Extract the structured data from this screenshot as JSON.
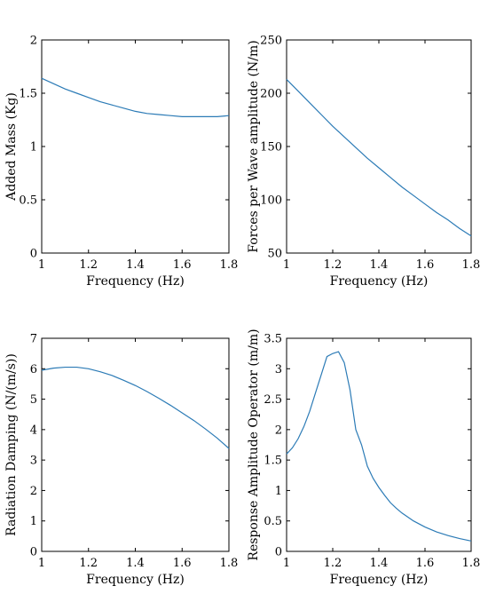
{
  "chart_data": [
    {
      "type": "line",
      "xlabel": "Frequency (Hz)",
      "ylabel": "Added Mass (Kg)",
      "xlim": [
        1,
        1.8
      ],
      "ylim": [
        0,
        2
      ],
      "xticks": [
        "1",
        "1.2",
        "1.4",
        "1.6",
        "1.8"
      ],
      "yticks": [
        "0",
        "0.5",
        "1",
        "1.5",
        "2"
      ],
      "x": [
        1.0,
        1.05,
        1.1,
        1.15,
        1.2,
        1.25,
        1.3,
        1.35,
        1.4,
        1.45,
        1.5,
        1.55,
        1.6,
        1.65,
        1.7,
        1.75,
        1.8
      ],
      "y": [
        1.64,
        1.59,
        1.54,
        1.5,
        1.46,
        1.42,
        1.39,
        1.36,
        1.33,
        1.31,
        1.3,
        1.29,
        1.28,
        1.28,
        1.28,
        1.28,
        1.29
      ]
    },
    {
      "type": "line",
      "xlabel": "Frequency (Hz)",
      "ylabel": "Forces per Wave amplitude (N/m)",
      "xlim": [
        1,
        1.8
      ],
      "ylim": [
        50,
        250
      ],
      "xticks": [
        "1",
        "1.2",
        "1.4",
        "1.6",
        "1.8"
      ],
      "yticks": [
        "50",
        "100",
        "150",
        "200",
        "250"
      ],
      "x": [
        1.0,
        1.05,
        1.1,
        1.15,
        1.2,
        1.25,
        1.3,
        1.35,
        1.4,
        1.45,
        1.5,
        1.55,
        1.6,
        1.65,
        1.7,
        1.75,
        1.8
      ],
      "y": [
        213,
        202,
        191,
        180,
        169,
        159,
        149,
        139,
        130,
        121,
        112,
        104,
        96,
        88,
        81,
        73,
        66
      ]
    },
    {
      "type": "line",
      "xlabel": "Frequency (Hz)",
      "ylabel": "Radiation Damping (N/(m/s))",
      "xlim": [
        1,
        1.8
      ],
      "ylim": [
        0,
        7
      ],
      "xticks": [
        "1",
        "1.2",
        "1.4",
        "1.6",
        "1.8"
      ],
      "yticks": [
        "0",
        "1",
        "2",
        "3",
        "4",
        "5",
        "6",
        "7"
      ],
      "x": [
        1.0,
        1.05,
        1.1,
        1.15,
        1.2,
        1.25,
        1.3,
        1.35,
        1.4,
        1.45,
        1.5,
        1.55,
        1.6,
        1.65,
        1.7,
        1.75,
        1.8
      ],
      "y": [
        5.95,
        6.02,
        6.05,
        6.05,
        6.0,
        5.9,
        5.78,
        5.62,
        5.45,
        5.25,
        5.03,
        4.8,
        4.55,
        4.3,
        4.02,
        3.72,
        3.38
      ]
    },
    {
      "type": "line",
      "xlabel": "Frequency (Hz)",
      "ylabel": "Response Amplitude Operator (m/m)",
      "xlim": [
        1,
        1.8
      ],
      "ylim": [
        0,
        3.5
      ],
      "xticks": [
        "1",
        "1.2",
        "1.4",
        "1.6",
        "1.8"
      ],
      "yticks": [
        "0",
        "0.5",
        "1",
        "1.5",
        "2",
        "2.5",
        "3",
        "3.5"
      ],
      "x": [
        1.0,
        1.025,
        1.05,
        1.075,
        1.1,
        1.125,
        1.15,
        1.175,
        1.2,
        1.225,
        1.25,
        1.275,
        1.3,
        1.325,
        1.35,
        1.375,
        1.4,
        1.425,
        1.45,
        1.475,
        1.5,
        1.55,
        1.6,
        1.65,
        1.7,
        1.75,
        1.8
      ],
      "y": [
        1.6,
        1.7,
        1.85,
        2.05,
        2.3,
        2.6,
        2.9,
        3.2,
        3.25,
        3.28,
        3.1,
        2.65,
        2.0,
        1.75,
        1.4,
        1.2,
        1.05,
        0.92,
        0.8,
        0.71,
        0.63,
        0.5,
        0.4,
        0.32,
        0.26,
        0.21,
        0.17
      ]
    }
  ]
}
